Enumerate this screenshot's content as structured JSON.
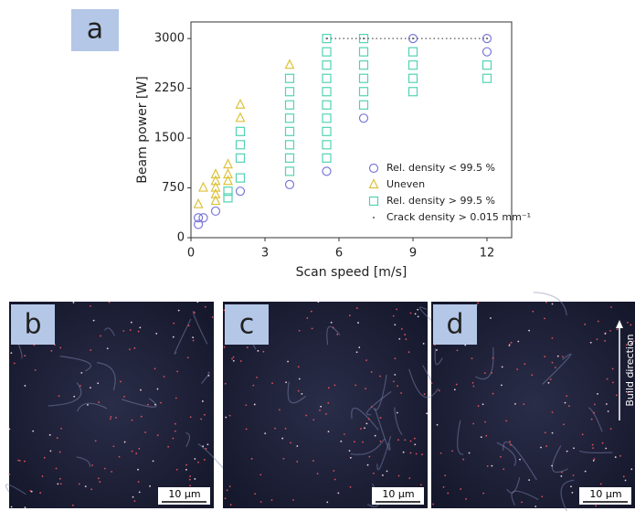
{
  "chart_data": {
    "type": "scatter",
    "label": "a",
    "x_label": "Scan speed [m/s]",
    "y_label": "Beam power [W]",
    "xlim": [
      0,
      13
    ],
    "ylim": [
      0,
      3250
    ],
    "xticks": [
      0,
      3,
      6,
      9,
      12
    ],
    "yticks": [
      0,
      750,
      1500,
      2250,
      3000
    ],
    "series": [
      {
        "name": "Rel. density < 99.5 %",
        "marker": "circle",
        "color": "#7a78d8",
        "x": [
          0.3,
          0.3,
          0.5,
          1,
          2,
          4,
          5.5,
          7,
          9,
          12,
          12
        ],
        "values": [
          200,
          300,
          300,
          400,
          700,
          800,
          1000,
          1800,
          3000,
          3000,
          2800
        ]
      },
      {
        "name": "Uneven",
        "marker": "triangle",
        "color": "#dcc23a",
        "x": [
          0.3,
          0.5,
          1,
          1,
          1,
          1,
          1,
          1.5,
          1.5,
          1.5,
          2,
          2,
          4
        ],
        "values": [
          500,
          750,
          550,
          650,
          750,
          850,
          950,
          850,
          950,
          1100,
          1800,
          2000,
          2600
        ]
      },
      {
        "name": "Rel. density > 99.5 %",
        "marker": "square",
        "color": "#52d3b3",
        "x": [
          1.5,
          1.5,
          2,
          2,
          2,
          2,
          4,
          4,
          4,
          4,
          4,
          4,
          4,
          4,
          5.5,
          5.5,
          5.5,
          5.5,
          5.5,
          5.5,
          5.5,
          5.5,
          5.5,
          5.5,
          7,
          7,
          7,
          7,
          7,
          7,
          9,
          9,
          9,
          9,
          12,
          12
        ],
        "values": [
          600,
          700,
          900,
          1200,
          1400,
          1600,
          1000,
          1200,
          1400,
          1600,
          1800,
          2000,
          2200,
          2400,
          1200,
          1400,
          1600,
          1800,
          2000,
          2200,
          2400,
          2600,
          2800,
          3000,
          2000,
          2200,
          2400,
          2600,
          2800,
          3000,
          2200,
          2400,
          2600,
          2800,
          2400,
          2600
        ]
      },
      {
        "name": "Crack density > 0.015 mm⁻¹",
        "marker": "dot",
        "color": "#555555",
        "x": [
          5.5,
          7,
          9,
          12
        ],
        "values": [
          3000,
          3000,
          3000,
          3000
        ]
      }
    ]
  },
  "panels": [
    {
      "label": "b",
      "scale_bar": "10 μm"
    },
    {
      "label": "c",
      "scale_bar": "10 μm"
    },
    {
      "label": "d",
      "scale_bar": "10 μm",
      "annotation": "Build direction"
    }
  ]
}
